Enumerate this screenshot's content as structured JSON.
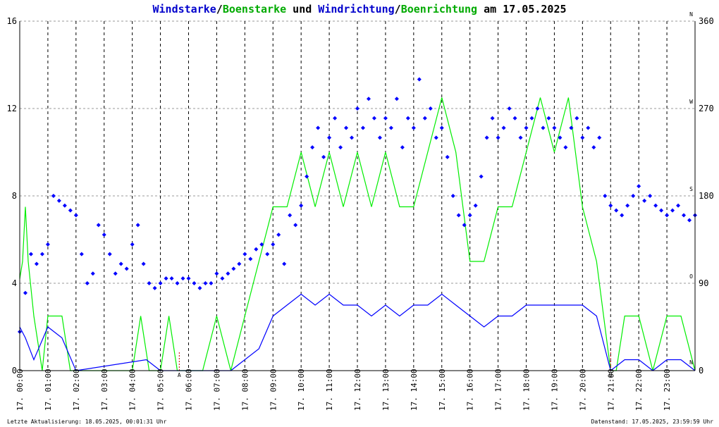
{
  "title": {
    "parts": [
      {
        "text": "Windstarke",
        "color": "#0000cc"
      },
      {
        "text": "/",
        "color": "#000000"
      },
      {
        "text": "Boenstarke",
        "color": "#00aa00"
      },
      {
        "text": " und ",
        "color": "#000000"
      },
      {
        "text": "Windrichtung",
        "color": "#0000cc"
      },
      {
        "text": "/",
        "color": "#000000"
      },
      {
        "text": "Boenrichtung",
        "color": "#00aa00"
      },
      {
        "text": " am 17.05.2025",
        "color": "#000000"
      }
    ]
  },
  "footer": {
    "left": "Letzte Aktualisierung: 18.05.2025, 00:01:31 Uhr",
    "right": "Datenstand: 17.05.2025, 23:59:59 Uhr"
  },
  "colors": {
    "wind": "#0000ff",
    "gust": "#00ee00",
    "grid": "#999999",
    "marker": "#cc0000"
  },
  "chart_data": {
    "type": "line",
    "y_left": {
      "ticks": [
        "0",
        "4",
        "8",
        "12",
        "16"
      ],
      "values": [
        0,
        4,
        8,
        12,
        16
      ],
      "ylim": [
        0,
        16
      ]
    },
    "y_right": {
      "ticks": [
        "0",
        "90",
        "180",
        "270",
        "360"
      ],
      "values": [
        0,
        90,
        180,
        270,
        360
      ],
      "ylim": [
        0,
        360
      ],
      "direction_letters": [
        "N",
        "O",
        "S",
        "W",
        "N"
      ]
    },
    "x_ticks": [
      "17. 00:00",
      "17. 01:00",
      "17. 02:00",
      "17. 03:00",
      "17. 04:00",
      "17. 05:00",
      "17. 06:00",
      "17. 07:00",
      "17. 08:00",
      "17. 09:00",
      "17. 10:00",
      "17. 11:00",
      "17. 12:00",
      "17. 13:00",
      "17. 14:00",
      "17. 15:00",
      "17. 16:00",
      "17. 17:00",
      "17. 18:00",
      "17. 19:00",
      "17. 20:00",
      "17. 21:00",
      "17. 22:00",
      "17. 23:00"
    ],
    "xlim_hours": [
      0,
      24
    ],
    "markers": [
      {
        "hour": 5.67,
        "label": "A"
      },
      {
        "hour": 21.0,
        "label": "U"
      }
    ],
    "series": [
      {
        "kind": "gust_speed",
        "hours": [
          0.0,
          0.1,
          0.2,
          0.3,
          0.5,
          0.8,
          1.0,
          1.2,
          1.5,
          1.8,
          2.0,
          3.0,
          4.0,
          4.3,
          4.6,
          5.0,
          5.3,
          5.6,
          6.0,
          6.5,
          7.0,
          7.5,
          8.0,
          8.5,
          9.0,
          9.5,
          10.0,
          10.5,
          11.0,
          11.5,
          12.0,
          12.5,
          13.0,
          13.5,
          14.0,
          14.5,
          15.0,
          15.5,
          16.0,
          16.5,
          17.0,
          17.5,
          18.0,
          18.5,
          19.0,
          19.5,
          20.0,
          20.5,
          21.0,
          21.2,
          21.5,
          22.0,
          22.5,
          23.0,
          23.5,
          24.0
        ],
        "values": [
          4.2,
          5.0,
          7.5,
          5.0,
          2.5,
          0.0,
          2.5,
          2.5,
          2.5,
          0.0,
          0.0,
          0.0,
          0.0,
          2.5,
          0.0,
          0.0,
          2.5,
          0.0,
          0.0,
          0.0,
          2.5,
          0.0,
          2.5,
          5.0,
          7.5,
          7.5,
          10.0,
          7.5,
          10.0,
          7.5,
          10.0,
          7.5,
          10.0,
          7.5,
          7.5,
          10.0,
          12.5,
          10.0,
          5.0,
          5.0,
          7.5,
          7.5,
          10.0,
          12.5,
          10.0,
          12.5,
          7.5,
          5.0,
          0.0,
          0.0,
          2.5,
          2.5,
          0.0,
          2.5,
          2.5,
          0.0
        ]
      },
      {
        "kind": "wind_speed",
        "hours": [
          0.0,
          0.2,
          0.5,
          1.0,
          1.5,
          2.0,
          4.5,
          5.0,
          6.0,
          7.0,
          7.5,
          8.0,
          8.5,
          9.0,
          9.5,
          10.0,
          10.5,
          11.0,
          11.5,
          12.0,
          12.5,
          13.0,
          13.5,
          14.0,
          14.5,
          15.0,
          15.5,
          16.0,
          16.5,
          17.0,
          17.5,
          18.0,
          18.5,
          19.0,
          19.5,
          20.0,
          20.5,
          21.0,
          21.5,
          22.0,
          22.5,
          23.0,
          23.5,
          24.0
        ],
        "values": [
          2.0,
          1.5,
          0.5,
          2.0,
          1.5,
          0.0,
          0.5,
          0.0,
          0.0,
          0.0,
          0.0,
          0.5,
          1.0,
          2.5,
          3.0,
          3.5,
          3.0,
          3.5,
          3.0,
          3.0,
          2.5,
          3.0,
          2.5,
          3.0,
          3.0,
          3.5,
          3.0,
          2.5,
          2.0,
          2.5,
          2.5,
          3.0,
          3.0,
          3.0,
          3.0,
          3.0,
          2.5,
          0.0,
          0.5,
          0.5,
          0.0,
          0.5,
          0.5,
          0.0
        ]
      },
      {
        "kind": "wind_direction",
        "hours": [
          0.0,
          0.2,
          0.4,
          0.6,
          0.8,
          1.0,
          1.2,
          1.4,
          1.6,
          1.8,
          2.0,
          2.2,
          2.4,
          2.6,
          2.8,
          3.0,
          3.2,
          3.4,
          3.6,
          3.8,
          4.0,
          4.2,
          4.4,
          4.6,
          4.8,
          5.0,
          5.2,
          5.4,
          5.6,
          5.8,
          6.0,
          6.2,
          6.4,
          6.6,
          6.8,
          7.0,
          7.2,
          7.4,
          7.6,
          7.8,
          8.0,
          8.2,
          8.4,
          8.6,
          8.8,
          9.0,
          9.2,
          9.4,
          9.6,
          9.8,
          10.0,
          10.2,
          10.4,
          10.6,
          10.8,
          11.0,
          11.2,
          11.4,
          11.6,
          11.8,
          12.0,
          12.2,
          12.4,
          12.6,
          12.8,
          13.0,
          13.2,
          13.4,
          13.6,
          13.8,
          14.0,
          14.2,
          14.4,
          14.6,
          14.8,
          15.0,
          15.2,
          15.4,
          15.6,
          15.8,
          16.0,
          16.2,
          16.4,
          16.6,
          16.8,
          17.0,
          17.2,
          17.4,
          17.6,
          17.8,
          18.0,
          18.2,
          18.4,
          18.6,
          18.8,
          19.0,
          19.2,
          19.4,
          19.6,
          19.8,
          20.0,
          20.2,
          20.4,
          20.6,
          20.8,
          21.0,
          21.2,
          21.4,
          21.6,
          21.8,
          22.0,
          22.2,
          22.4,
          22.6,
          22.8,
          23.0,
          23.2,
          23.4,
          23.6,
          23.8,
          24.0
        ],
        "values": [
          40,
          80,
          120,
          110,
          120,
          130,
          180,
          175,
          170,
          165,
          160,
          120,
          90,
          100,
          150,
          140,
          120,
          100,
          110,
          105,
          130,
          150,
          110,
          90,
          85,
          90,
          95,
          95,
          90,
          95,
          95,
          90,
          85,
          90,
          90,
          100,
          95,
          100,
          105,
          110,
          120,
          115,
          125,
          130,
          120,
          130,
          140,
          110,
          160,
          150,
          170,
          200,
          230,
          250,
          220,
          240,
          260,
          230,
          250,
          240,
          270,
          250,
          280,
          260,
          240,
          260,
          250,
          280,
          230,
          260,
          250,
          300,
          260,
          270,
          240,
          250,
          220,
          180,
          160,
          150,
          160,
          170,
          200,
          240,
          260,
          240,
          250,
          270,
          260,
          240,
          250,
          260,
          270,
          250,
          260,
          250,
          240,
          230,
          250,
          260,
          240,
          250,
          230,
          240,
          180,
          170,
          165,
          160,
          170,
          180,
          190,
          175,
          180,
          170,
          165,
          160,
          165,
          170,
          160,
          155,
          160
        ]
      }
    ]
  }
}
